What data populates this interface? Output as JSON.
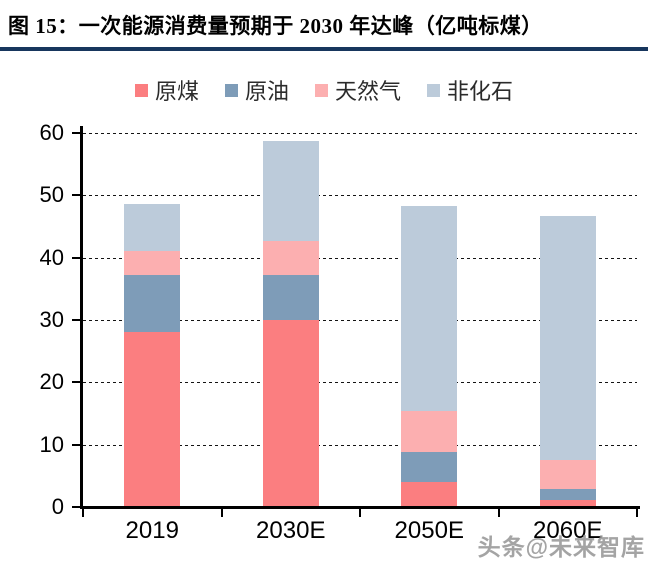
{
  "figure": {
    "title": "图 15：一次能源消费量预期于 2030 年达峰（亿吨标煤）",
    "title_rule_color": "#17365D",
    "watermark": "头条@未来智库"
  },
  "chart_data": {
    "type": "bar",
    "stacked": true,
    "title": "一次能源消费量预期于2030年达峰",
    "unit_label": "亿吨标煤",
    "categories": [
      "2019",
      "2030E",
      "2050E",
      "2060E"
    ],
    "series": [
      {
        "name": "原煤",
        "color": "#FB7E80",
        "values": [
          28.0,
          30.0,
          4.0,
          1.2
        ]
      },
      {
        "name": "原油",
        "color": "#7E9CB8",
        "values": [
          9.2,
          7.3,
          4.8,
          1.7
        ]
      },
      {
        "name": "天然气",
        "color": "#FCAFB0",
        "values": [
          3.9,
          5.4,
          6.6,
          4.7
        ]
      },
      {
        "name": "非化石",
        "color": "#BCCBDA",
        "values": [
          7.5,
          16.0,
          32.9,
          39.1
        ]
      }
    ],
    "ylim": [
      0,
      60
    ],
    "ytick_interval": 10,
    "yticks": [
      "0",
      "10",
      "20",
      "30",
      "40",
      "50",
      "60"
    ],
    "grid": "horizontal-dashed",
    "legend_position": "top-center"
  }
}
